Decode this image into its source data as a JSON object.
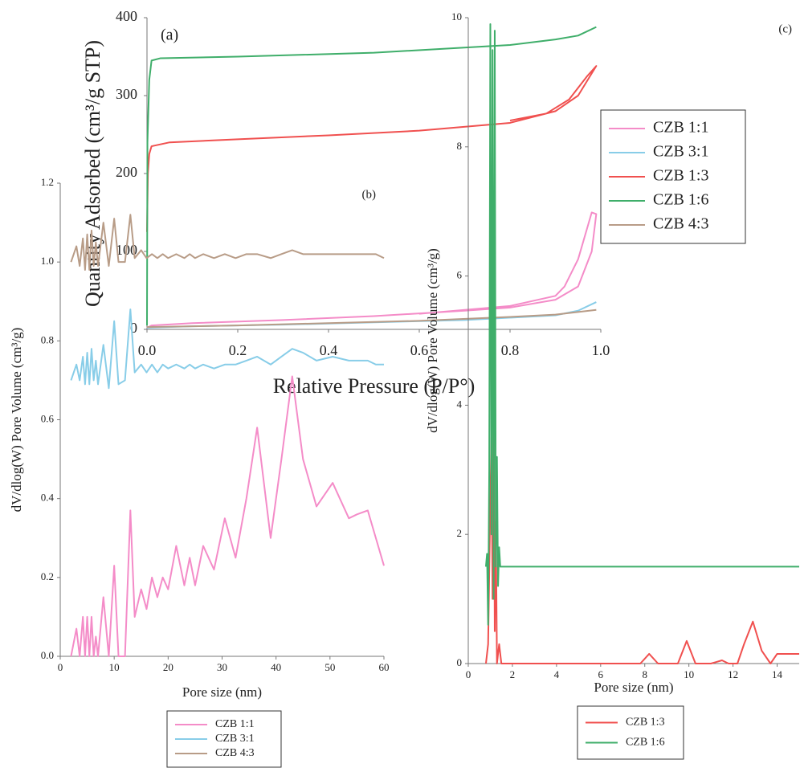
{
  "chart_data": [
    {
      "type": "line",
      "label": "(a)",
      "xlabel": "Relative Pressure (P/P°)",
      "ylabel": "Quantity Adsorbed (cm³/g STP)",
      "xlim": [
        0,
        1
      ],
      "ylim": [
        0,
        400
      ],
      "xticks": [
        {
          "value": 0,
          "label": "0.0"
        },
        0.2,
        0.4,
        0.6,
        0.8,
        {
          "value": 1,
          "label": "1.0"
        }
      ],
      "yticks": [
        0,
        100,
        200,
        300,
        400
      ],
      "legend": "right",
      "series": [
        {
          "name": "CZB 1:1",
          "color": "#f48cc8",
          "x": [
            0,
            0.01,
            0.1,
            0.3,
            0.5,
            0.7,
            0.8,
            0.9,
            0.95,
            0.98,
            0.99,
            0.98,
            0.95,
            0.92,
            0.9,
            0.8,
            0.6
          ],
          "values": [
            2,
            5,
            8,
            12,
            17,
            24,
            28,
            38,
            55,
            100,
            148,
            150,
            90,
            55,
            43,
            30,
            20
          ]
        },
        {
          "name": "CZB 3:1",
          "color": "#88cde8",
          "x": [
            0,
            0.1,
            0.3,
            0.5,
            0.7,
            0.9,
            0.95,
            0.99
          ],
          "values": [
            2,
            4,
            6,
            9,
            12,
            18,
            24,
            35
          ]
        },
        {
          "name": "CZB 1:3",
          "color": "#f0504f",
          "x": [
            0,
            0.002,
            0.005,
            0.01,
            0.05,
            0.2,
            0.4,
            0.6,
            0.8,
            0.9,
            0.95,
            0.99,
            0.97,
            0.93,
            0.88,
            0.8
          ],
          "values": [
            125,
            200,
            225,
            235,
            240,
            244,
            249,
            255,
            265,
            280,
            300,
            338,
            325,
            295,
            277,
            268
          ]
        },
        {
          "name": "CZB 1:6",
          "color": "#3fae6a",
          "x": [
            0,
            0.001,
            0.005,
            0.01,
            0.03,
            0.2,
            0.5,
            0.8,
            0.9,
            0.95,
            0.99
          ],
          "values": [
            5,
            240,
            320,
            345,
            348,
            350,
            355,
            365,
            372,
            377,
            388
          ]
        },
        {
          "name": "CZB 4:3",
          "color": "#b89c87",
          "x": [
            0,
            0.2,
            0.4,
            0.6,
            0.8,
            0.9,
            0.99
          ],
          "values": [
            3,
            5,
            8,
            11,
            16,
            19,
            25
          ]
        }
      ]
    },
    {
      "type": "line",
      "label": "(b)",
      "xlabel": "Pore size (nm)",
      "ylabel": "dV/dlog(W) Pore Volume (cm³/g)",
      "xlim": [
        0,
        60
      ],
      "ylim": [
        0,
        1.2
      ],
      "xticks": [
        0,
        10,
        20,
        30,
        40,
        50,
        60
      ],
      "yticks": [
        {
          "value": 0,
          "label": "0.0"
        },
        0.2,
        0.4,
        0.6,
        0.8,
        {
          "value": 1,
          "label": "1.0"
        },
        1.2
      ],
      "legend": "bottom",
      "series": [
        {
          "name": "CZB 1:1",
          "color": "#f48cc8",
          "x": [
            2,
            3,
            3.6,
            4.2,
            4.6,
            5,
            5.4,
            5.8,
            6.2,
            6.6,
            7,
            8,
            9,
            10,
            10.8,
            12,
            13,
            13.8,
            15,
            16,
            17,
            18,
            19,
            20,
            21.5,
            23,
            24,
            25,
            26.5,
            28.5,
            30.5,
            32.5,
            34.5,
            36.5,
            39,
            41,
            43,
            45,
            47.5,
            50.5,
            53.5,
            55,
            57,
            58.5,
            60
          ],
          "values": [
            0,
            0.07,
            0,
            0.1,
            0,
            0.1,
            0,
            0.1,
            0,
            0.05,
            0,
            0.15,
            0,
            0.23,
            0,
            0,
            0.37,
            0.1,
            0.17,
            0.12,
            0.2,
            0.15,
            0.2,
            0.17,
            0.28,
            0.18,
            0.25,
            0.18,
            0.28,
            0.22,
            0.35,
            0.25,
            0.4,
            0.58,
            0.3,
            0.5,
            0.71,
            0.5,
            0.38,
            0.44,
            0.35,
            0.36,
            0.37,
            0.3,
            0.23
          ]
        },
        {
          "name": "CZB 3:1",
          "color": "#88cde8",
          "x": [
            2,
            3,
            3.6,
            4.2,
            4.6,
            5,
            5.4,
            5.8,
            6.2,
            6.6,
            7,
            8,
            9,
            10,
            10.8,
            12,
            13,
            13.8,
            15,
            16,
            17,
            18,
            19,
            20,
            21.5,
            23,
            24,
            25,
            26.5,
            28.5,
            30.5,
            32.5,
            34.5,
            36.5,
            39,
            41,
            43,
            45,
            47.5,
            50.5,
            53.5,
            55,
            57,
            58.5,
            60
          ],
          "values": [
            0.7,
            0.74,
            0.7,
            0.76,
            0.69,
            0.77,
            0.69,
            0.78,
            0.7,
            0.75,
            0.69,
            0.79,
            0.68,
            0.85,
            0.69,
            0.7,
            0.88,
            0.72,
            0.74,
            0.72,
            0.74,
            0.72,
            0.74,
            0.73,
            0.74,
            0.73,
            0.74,
            0.73,
            0.74,
            0.73,
            0.74,
            0.74,
            0.75,
            0.76,
            0.74,
            0.76,
            0.78,
            0.77,
            0.75,
            0.76,
            0.75,
            0.75,
            0.75,
            0.74,
            0.74
          ]
        },
        {
          "name": "CZB 4:3",
          "color": "#b89c87",
          "x": [
            2,
            3,
            3.6,
            4.2,
            4.6,
            5,
            5.4,
            5.8,
            6.2,
            6.6,
            7,
            8,
            9,
            10,
            10.8,
            12,
            13,
            13.8,
            15,
            16,
            17,
            18,
            19,
            20,
            21.5,
            23,
            24,
            25,
            26.5,
            28.5,
            30.5,
            32.5,
            34.5,
            36.5,
            39,
            41,
            43,
            45,
            47.5,
            50.5,
            53.5,
            55,
            57,
            58.5,
            60
          ],
          "values": [
            1.0,
            1.04,
            0.99,
            1.06,
            0.98,
            1.07,
            0.98,
            1.08,
            0.99,
            1.05,
            0.99,
            1.1,
            0.99,
            1.11,
            1.0,
            1.0,
            1.12,
            1.01,
            1.03,
            1.01,
            1.02,
            1.01,
            1.02,
            1.01,
            1.02,
            1.01,
            1.02,
            1.01,
            1.02,
            1.01,
            1.02,
            1.01,
            1.02,
            1.02,
            1.01,
            1.02,
            1.03,
            1.02,
            1.02,
            1.02,
            1.02,
            1.02,
            1.02,
            1.02,
            1.01
          ]
        }
      ]
    },
    {
      "type": "line",
      "label": "(c)",
      "xlabel": "Pore size (nm)",
      "ylabel": "dV/dlog(W) Pore Volume (cm³/g)",
      "xlim": [
        0,
        15
      ],
      "ylim": [
        0,
        10
      ],
      "xticks": [
        0,
        2,
        4,
        6,
        8,
        10,
        12,
        14
      ],
      "yticks": [
        0,
        2,
        4,
        6,
        8,
        10
      ],
      "legend": "bottom",
      "series": [
        {
          "name": "CZB 1:3",
          "color": "#f0504f",
          "x": [
            0.8,
            0.9,
            1.0,
            1.05,
            1.1,
            1.15,
            1.2,
            1.25,
            1.3,
            1.4,
            1.5,
            2,
            4,
            7.8,
            8.2,
            8.6,
            9.5,
            9.9,
            10.3,
            11,
            11.5,
            11.8,
            12.2,
            12.5,
            12.9,
            13.3,
            13.7,
            14,
            15
          ],
          "values": [
            0,
            0.3,
            2.5,
            3.5,
            1,
            4.6,
            0.5,
            2.2,
            0,
            0.3,
            0,
            0,
            0,
            0,
            0.15,
            0,
            0,
            0.35,
            0,
            0,
            0.05,
            0,
            0,
            0.3,
            0.65,
            0.2,
            0,
            0.15,
            0.15
          ]
        },
        {
          "name": "CZB 1:6",
          "color": "#3fae6a",
          "x": [
            0.8,
            0.85,
            0.9,
            0.95,
            1.0,
            1.05,
            1.1,
            1.15,
            1.2,
            1.25,
            1.3,
            1.35,
            1.4,
            1.45,
            1.5,
            15
          ],
          "values": [
            1.5,
            1.7,
            0.6,
            3,
            9.9,
            2,
            9.5,
            1,
            9.8,
            1.5,
            3.2,
            1.2,
            1.8,
            1.5,
            1.5,
            1.5
          ]
        }
      ]
    }
  ]
}
